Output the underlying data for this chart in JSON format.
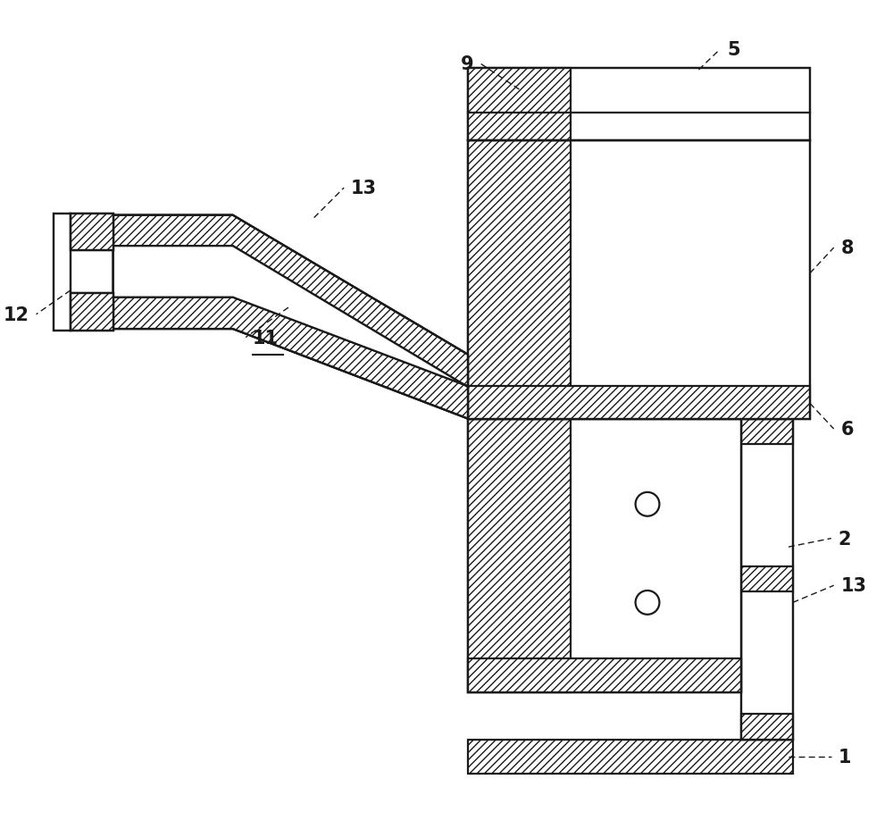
{
  "bg": "#ffffff",
  "lc": "#1a1a1a",
  "lw": 1.6,
  "fs": 15,
  "figw": 10.0,
  "figh": 9.2,
  "xl": 0,
  "xr": 10,
  "yb": 0,
  "yt": 9.2
}
